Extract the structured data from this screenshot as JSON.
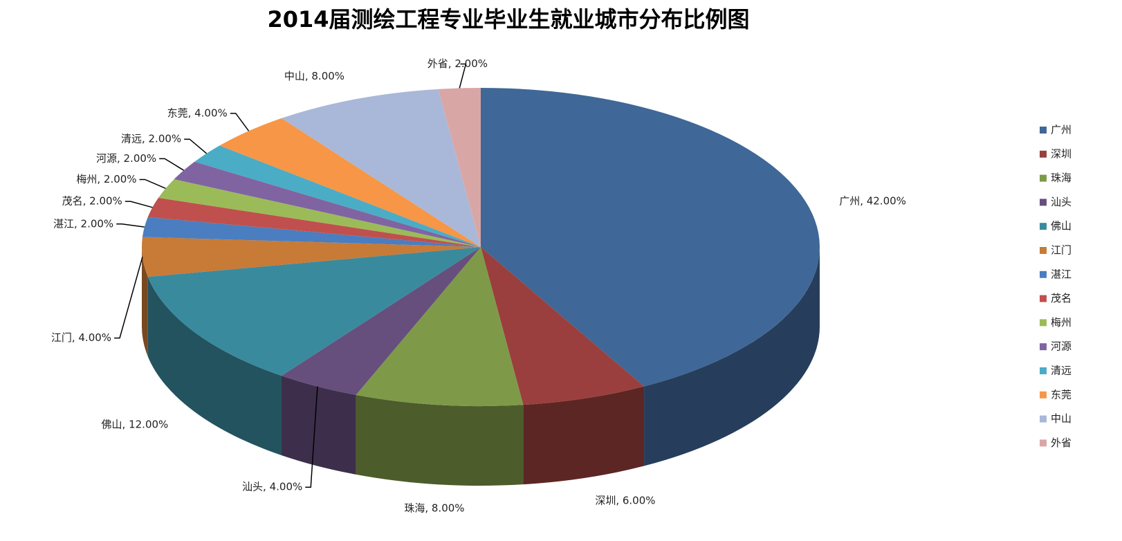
{
  "chart_data": {
    "type": "pie3d",
    "title": "2014届测绘工程专业毕业生就业城市分布比例图",
    "categories": [
      "广州",
      "深圳",
      "珠海",
      "汕头",
      "佛山",
      "江门",
      "湛江",
      "茂名",
      "梅州",
      "河源",
      "清远",
      "东莞",
      "中山",
      "外省"
    ],
    "values": [
      42,
      6,
      8,
      4,
      12,
      4,
      2,
      2,
      2,
      2,
      2,
      4,
      8,
      2
    ],
    "value_labels": [
      "广州, 42.00%",
      "深圳, 6.00%",
      "珠海, 8.00%",
      "汕头, 4.00%",
      "佛山, 12.00%",
      "江门, 4.00%",
      "湛江, 2.00%",
      "茂名, 2.00%",
      "梅州, 2.00%",
      "河源, 2.00%",
      "清远, 2.00%",
      "东莞, 4.00%",
      "中山, 8.00%",
      "外省, 2.00%"
    ],
    "colors": [
      "#3f6797",
      "#9a3f3d",
      "#7e9a48",
      "#664f7d",
      "#3a8a9e",
      "#c87a37",
      "#4a7ec0",
      "#c0504d",
      "#9bbb59",
      "#8064a2",
      "#4bacc6",
      "#f79646",
      "#a9b8d8",
      "#d9a6a6"
    ],
    "legend": "right"
  }
}
